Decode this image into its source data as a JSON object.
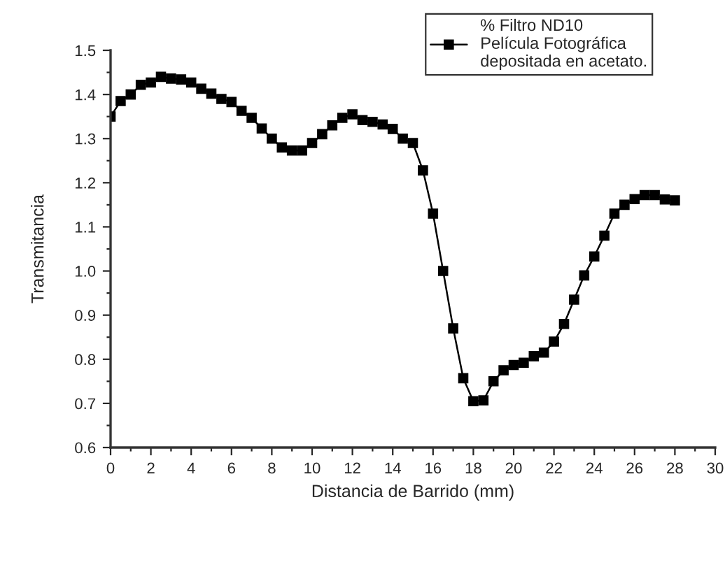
{
  "chart_data": {
    "type": "line",
    "xlabel": "Distancia de Barrido (mm)",
    "ylabel": "Transmitancia",
    "x": [
      0,
      0.5,
      1,
      1.5,
      2,
      2.5,
      3,
      3.5,
      4,
      4.5,
      5,
      5.5,
      6,
      6.5,
      7,
      7.5,
      8,
      8.5,
      9,
      9.5,
      10,
      10.5,
      11,
      11.5,
      12,
      12.5,
      13,
      13.5,
      14,
      14.5,
      15,
      15.5,
      16,
      16.5,
      17,
      17.5,
      18,
      18.5,
      19,
      19.5,
      20,
      20.5,
      21,
      21.5,
      22,
      22.5,
      23,
      23.5,
      24,
      24.5,
      25,
      25.5,
      26,
      26.5,
      27,
      27.5,
      28
    ],
    "series": [
      {
        "name": "% Filtro ND10\nPelícula Fotográfica\ndepositada en acetato.",
        "color": "#000000",
        "values": [
          1.35,
          1.385,
          1.4,
          1.422,
          1.427,
          1.44,
          1.436,
          1.434,
          1.427,
          1.413,
          1.402,
          1.39,
          1.383,
          1.363,
          1.347,
          1.323,
          1.3,
          1.28,
          1.273,
          1.273,
          1.29,
          1.31,
          1.33,
          1.347,
          1.355,
          1.342,
          1.338,
          1.332,
          1.322,
          1.3,
          1.29,
          1.228,
          1.13,
          1.0,
          0.87,
          0.757,
          0.705,
          0.707,
          0.75,
          0.775,
          0.787,
          0.792,
          0.807,
          0.815,
          0.84,
          0.88,
          0.935,
          0.99,
          1.033,
          1.08,
          1.13,
          1.15,
          1.163,
          1.172,
          1.172,
          1.162,
          1.16
        ]
      }
    ],
    "xlim": [
      0,
      30
    ],
    "xticks": [
      0,
      2,
      4,
      6,
      8,
      10,
      12,
      14,
      16,
      18,
      20,
      22,
      24,
      26,
      28,
      30
    ],
    "ylim": [
      0.6,
      1.5
    ],
    "yticks": [
      {
        "value": 0.6,
        "label": "0.6"
      },
      {
        "value": 0.7,
        "label": "0.7"
      },
      {
        "value": 0.8,
        "label": "0.8"
      },
      {
        "value": 0.9,
        "label": "0.9"
      },
      {
        "value": 1.0,
        "label": "1.0"
      },
      {
        "value": 1.1,
        "label": "1.1"
      },
      {
        "value": 1.2,
        "label": "1.2"
      },
      {
        "value": 1.3,
        "label": "1.3"
      },
      {
        "value": 1.4,
        "label": "1.4"
      },
      {
        "value": 1.5,
        "label": "1.5"
      }
    ],
    "marker": "square",
    "line_style": "solid",
    "legend": "top right",
    "grid": false
  }
}
